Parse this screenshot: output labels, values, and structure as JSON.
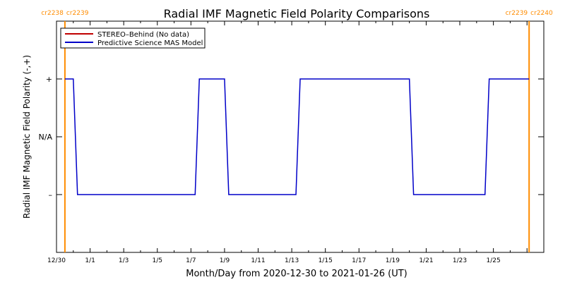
{
  "chart_data": {
    "type": "line",
    "title": "Radial IMF Magnetic Field Polarity Comparisons",
    "xlabel": "Month/Day from 2020-12-30 to 2021-01-26 (UT)",
    "ylabel": "Radial IMF Magnetic Field Polarity (-,+)",
    "x_range": [
      "2020-12-30",
      "2021-01-28"
    ],
    "x_ticks": [
      "12/30",
      "1/1",
      "1/3",
      "1/5",
      "1/7",
      "1/9",
      "1/11",
      "1/13",
      "1/15",
      "1/17",
      "1/19",
      "1/21",
      "1/23",
      "1/25"
    ],
    "y_ticks": [
      "+",
      "N/A",
      "–"
    ],
    "y_tick_values": [
      1,
      0,
      -1
    ],
    "ylim": [
      -2,
      2
    ],
    "grid": false,
    "legend_position": "top-left",
    "carrington": [
      {
        "date": "2020-12-30T12:00",
        "left": "cr2238",
        "right": "cr2239"
      },
      {
        "date": "2021-01-27T03:00",
        "left": "cr2239",
        "right": "cr2240"
      }
    ],
    "series": [
      {
        "name": "STEREO–Behind (No data)",
        "color": "#c00000",
        "x": [],
        "y": []
      },
      {
        "name": "Predictive Science MAS Model",
        "color": "#0000c8",
        "x": [
          "2020-12-30T12:00",
          "2020-12-31T00:00",
          "2020-12-31T06:00",
          "2021-01-07T06:00",
          "2021-01-07T12:00",
          "2021-01-09T00:00",
          "2021-01-09T06:00",
          "2021-01-13T06:00",
          "2021-01-13T12:00",
          "2021-01-20T00:00",
          "2021-01-20T06:00",
          "2021-01-24T12:00",
          "2021-01-24T18:00",
          "2021-01-27T03:00"
        ],
        "y": [
          1,
          1,
          -1,
          -1,
          1,
          1,
          -1,
          -1,
          1,
          1,
          -1,
          -1,
          1,
          1
        ]
      }
    ],
    "colors": {
      "carrington": "#ff8c00",
      "axes": "#000000"
    }
  }
}
